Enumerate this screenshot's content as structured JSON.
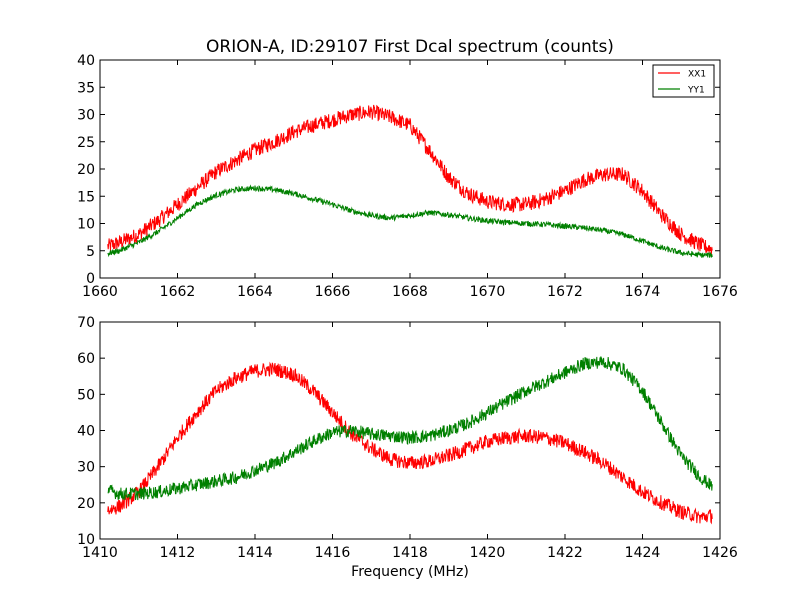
{
  "chart_data": [
    {
      "type": "line",
      "title": "ORION-A, ID:29107 First Dcal spectrum (counts)",
      "xlabel": "",
      "ylabel": "",
      "xlim": [
        1660,
        1676
      ],
      "ylim": [
        0,
        40
      ],
      "xticks": [
        1660,
        1662,
        1664,
        1666,
        1668,
        1670,
        1672,
        1674,
        1676
      ],
      "yticks": [
        0,
        5,
        10,
        15,
        20,
        25,
        30,
        35,
        40
      ],
      "grid": false,
      "legend_position": "top-right",
      "series": [
        {
          "name": "XX1",
          "color": "#ff0000",
          "x": [
            1660.2,
            1660.5,
            1661.0,
            1661.5,
            1662.0,
            1662.5,
            1663.0,
            1663.5,
            1664.0,
            1664.5,
            1665.0,
            1665.5,
            1666.0,
            1666.5,
            1667.0,
            1667.5,
            1668.0,
            1668.5,
            1669.0,
            1669.5,
            1670.0,
            1670.5,
            1671.0,
            1671.5,
            1672.0,
            1672.5,
            1673.0,
            1673.5,
            1674.0,
            1674.5,
            1675.0,
            1675.5,
            1675.8
          ],
          "values": [
            5.8,
            6.5,
            8.0,
            10.5,
            13.5,
            16.5,
            19.5,
            21.5,
            23.5,
            25.0,
            26.8,
            28.0,
            29.0,
            30.0,
            30.5,
            29.5,
            28.0,
            23.5,
            18.5,
            15.5,
            14.0,
            13.5,
            13.5,
            14.5,
            16.0,
            18.0,
            19.0,
            19.0,
            16.0,
            11.5,
            8.0,
            6.0,
            5.3
          ],
          "noise": 1.4
        },
        {
          "name": "YY1",
          "color": "#008000",
          "x": [
            1660.2,
            1660.5,
            1661.0,
            1661.5,
            1662.0,
            1662.5,
            1663.0,
            1663.5,
            1664.0,
            1664.5,
            1665.0,
            1665.5,
            1666.0,
            1666.5,
            1667.0,
            1667.5,
            1668.0,
            1668.5,
            1669.0,
            1669.5,
            1670.0,
            1670.5,
            1671.0,
            1671.5,
            1672.0,
            1672.5,
            1673.0,
            1673.5,
            1674.0,
            1674.5,
            1675.0,
            1675.5,
            1675.8
          ],
          "values": [
            4.5,
            5.0,
            6.5,
            8.5,
            11.0,
            13.5,
            15.2,
            16.2,
            16.5,
            16.2,
            15.5,
            14.5,
            13.5,
            12.3,
            11.5,
            11.0,
            11.5,
            12.0,
            11.6,
            11.0,
            10.5,
            10.2,
            10.0,
            9.8,
            9.5,
            9.2,
            8.7,
            8.0,
            6.8,
            5.5,
            4.6,
            4.2,
            4.2
          ],
          "noise": 0.5
        }
      ]
    },
    {
      "type": "line",
      "title": "",
      "xlabel": "Frequency (MHz)",
      "ylabel": "",
      "xlim": [
        1410,
        1426
      ],
      "ylim": [
        10,
        70
      ],
      "xticks": [
        1410,
        1412,
        1414,
        1416,
        1418,
        1420,
        1422,
        1424,
        1426
      ],
      "yticks": [
        10,
        20,
        30,
        40,
        50,
        60,
        70
      ],
      "grid": false,
      "series": [
        {
          "name": "XX1",
          "color": "#ff0000",
          "x": [
            1410.2,
            1410.5,
            1411.0,
            1411.5,
            1412.0,
            1412.5,
            1413.0,
            1413.5,
            1414.0,
            1414.5,
            1415.0,
            1415.5,
            1416.0,
            1416.5,
            1417.0,
            1417.5,
            1418.0,
            1418.5,
            1419.0,
            1419.5,
            1420.0,
            1420.5,
            1421.0,
            1421.5,
            1422.0,
            1422.5,
            1423.0,
            1423.5,
            1424.0,
            1424.5,
            1425.0,
            1425.5,
            1425.8
          ],
          "values": [
            18.0,
            19.0,
            23.0,
            30.0,
            38.0,
            45.0,
            51.0,
            54.5,
            56.5,
            57.0,
            55.5,
            51.0,
            45.0,
            39.0,
            35.0,
            32.0,
            31.0,
            31.5,
            33.0,
            35.0,
            37.0,
            38.0,
            38.5,
            38.0,
            36.5,
            34.0,
            31.0,
            27.0,
            23.0,
            20.0,
            17.5,
            16.0,
            16.5
          ],
          "noise": 2.0
        },
        {
          "name": "YY1",
          "color": "#008000",
          "x": [
            1410.2,
            1410.5,
            1411.0,
            1411.5,
            1412.0,
            1412.5,
            1413.0,
            1413.5,
            1414.0,
            1414.5,
            1415.0,
            1415.5,
            1416.0,
            1416.5,
            1417.0,
            1417.5,
            1418.0,
            1418.5,
            1419.0,
            1419.5,
            1420.0,
            1420.5,
            1421.0,
            1421.5,
            1422.0,
            1422.5,
            1423.0,
            1423.5,
            1424.0,
            1424.5,
            1425.0,
            1425.5,
            1425.8
          ],
          "values": [
            23.5,
            22.5,
            22.5,
            23.0,
            24.0,
            25.0,
            26.0,
            27.0,
            29.0,
            31.0,
            34.0,
            37.0,
            39.5,
            40.0,
            39.0,
            38.5,
            38.0,
            38.5,
            40.0,
            42.0,
            45.0,
            48.0,
            51.0,
            53.5,
            56.0,
            58.5,
            59.0,
            57.0,
            51.0,
            42.0,
            33.0,
            27.0,
            24.5
          ],
          "noise": 1.8
        }
      ]
    }
  ]
}
